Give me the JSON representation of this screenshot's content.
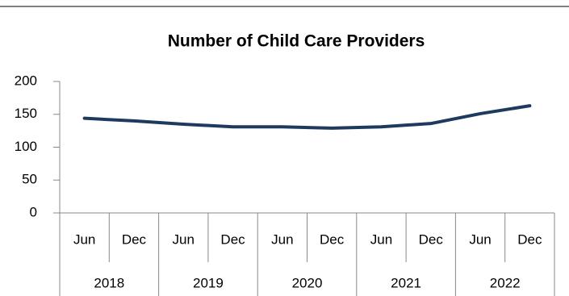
{
  "chart_data": {
    "type": "line",
    "title": "Number of Child Care Providers",
    "categories": [
      "Jun",
      "Dec",
      "Jun",
      "Dec",
      "Jun",
      "Dec",
      "Jun",
      "Dec",
      "Jun",
      "Dec"
    ],
    "category_groups": [
      "2018",
      "2019",
      "2020",
      "2021",
      "2022"
    ],
    "values": [
      144,
      140,
      135,
      131,
      131,
      129,
      131,
      136,
      151,
      163
    ],
    "color": "#1f3a5f",
    "ylim": [
      0,
      200
    ],
    "yticks": [
      0,
      50,
      100,
      150,
      200
    ],
    "grid": false
  }
}
